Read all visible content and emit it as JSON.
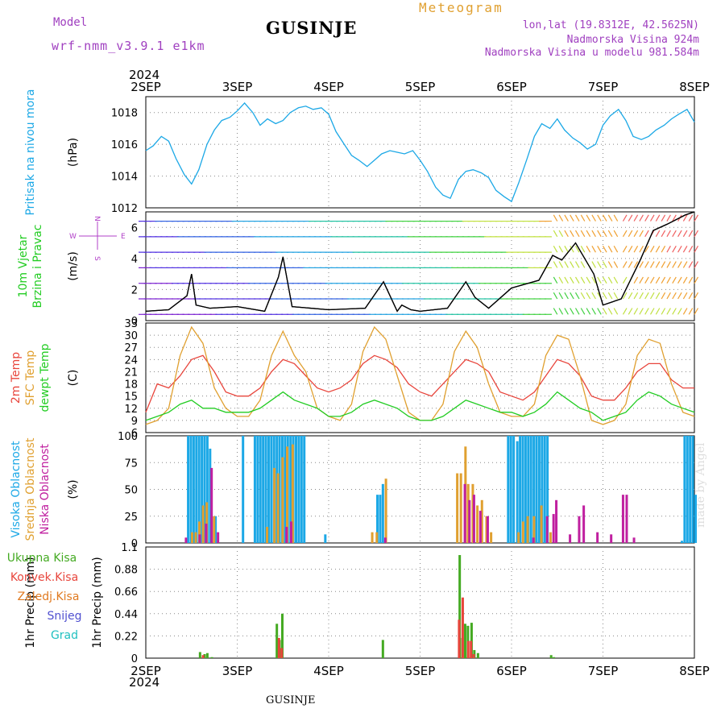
{
  "header": {
    "model_label": "Model",
    "model_value": "wrf-nmm_v3.9.1 e1km",
    "station_title": "GUSINJE",
    "meteogram_label": "Meteogram",
    "lonlat": "lon,lat (19.8312E, 42.5625N)",
    "altitude": "Nadmorska Visina 924m",
    "model_altitude": "Nadmorska Visina u modelu 981.584m",
    "year_top": "2024",
    "year_bottom": "2024",
    "footer_station": "GUSINJE",
    "credit": "made by Angel"
  },
  "colors": {
    "pressure": "#1ca8e6",
    "wind_label": "#22cc22",
    "wind_dir_label": "#b140c8",
    "temp2m": "#e8453c",
    "sfc_temp": "#e0a030",
    "dewpt": "#22cc22",
    "high_cloud": "#1ca8e6",
    "mid_cloud": "#e0a030",
    "low_cloud": "#c020a0",
    "precip_total": "#44aa22",
    "precip_conv": "#e8453c",
    "precip_frozen": "#e07a20",
    "snow": "#5050d0",
    "hail": "#20c0c0",
    "header_purple": "#a040c0",
    "header_orange": "#e0a030"
  },
  "x_axis": {
    "days": [
      "2SEP",
      "3SEP",
      "4SEP",
      "5SEP",
      "6SEP",
      "7SEP",
      "8SEP"
    ]
  },
  "chart_data": [
    {
      "type": "line",
      "ylabel_lines": [
        "Pritisak na nivou mora"
      ],
      "yunit": "(hPa)",
      "ylim": [
        1012,
        1019
      ],
      "yticks": [
        "1012",
        "1014",
        "1016",
        "1018"
      ],
      "x_unit": "days since 2SEP 2024",
      "series": [
        {
          "name": "Pritisak na nivou mora",
          "x": [
            0,
            0.08,
            0.17,
            0.25,
            0.33,
            0.42,
            0.5,
            0.58,
            0.67,
            0.75,
            0.83,
            0.92,
            1.0,
            1.08,
            1.17,
            1.25,
            1.33,
            1.42,
            1.5,
            1.58,
            1.67,
            1.75,
            1.83,
            1.92,
            2.0,
            2.08,
            2.17,
            2.25,
            2.33,
            2.42,
            2.5,
            2.58,
            2.67,
            2.75,
            2.83,
            2.92,
            3.0,
            3.08,
            3.17,
            3.25,
            3.33,
            3.42,
            3.5,
            3.58,
            3.67,
            3.75,
            3.83,
            3.92,
            4.0,
            4.08,
            4.17,
            4.25,
            4.33,
            4.42,
            4.5,
            4.58,
            4.67,
            4.75,
            4.83,
            4.92,
            5.0,
            5.08,
            5.17,
            5.25,
            5.33,
            5.42,
            5.5,
            5.58,
            5.67,
            5.75,
            5.83,
            5.92,
            6.0
          ],
          "values": [
            1015.6,
            1015.9,
            1016.5,
            1016.2,
            1015.1,
            1014.1,
            1013.5,
            1014.4,
            1016.0,
            1016.9,
            1017.5,
            1017.7,
            1018.1,
            1018.6,
            1018.0,
            1017.2,
            1017.6,
            1017.3,
            1017.5,
            1018.0,
            1018.3,
            1018.4,
            1018.2,
            1018.3,
            1017.9,
            1016.8,
            1016.0,
            1015.3,
            1015.0,
            1014.6,
            1015.0,
            1015.4,
            1015.6,
            1015.5,
            1015.4,
            1015.6,
            1015.0,
            1014.3,
            1013.3,
            1012.8,
            1012.6,
            1013.8,
            1014.3,
            1014.4,
            1014.2,
            1013.9,
            1013.1,
            1012.7,
            1012.4,
            1013.6,
            1015.1,
            1016.5,
            1017.3,
            1017.0,
            1017.6,
            1016.9,
            1016.4,
            1016.1,
            1015.7,
            1016.0,
            1017.2,
            1017.8,
            1018.2,
            1017.5,
            1016.5,
            1016.3,
            1016.5,
            1016.9,
            1017.2,
            1017.6,
            1017.9,
            1018.2,
            1017.4
          ]
        }
      ]
    },
    {
      "type": "line",
      "ylabel_lines": [
        "10m Vjetar",
        "Brzina i Pravac"
      ],
      "yunit": "(m/s)",
      "ylim": [
        0,
        7
      ],
      "yticks": [
        "0",
        "2",
        "4",
        "6"
      ],
      "compass": {
        "north": "N",
        "south": "S",
        "west": "W",
        "east": "E"
      },
      "series": [
        {
          "name": "Brzina",
          "x": [
            0,
            0.25,
            0.45,
            0.5,
            0.55,
            0.7,
            1.0,
            1.3,
            1.45,
            1.5,
            1.6,
            2.0,
            2.4,
            2.6,
            2.75,
            2.8,
            2.9,
            3.0,
            3.3,
            3.5,
            3.6,
            3.75,
            4.0,
            4.3,
            4.45,
            4.55,
            4.7,
            4.9,
            5.0,
            5.2,
            5.4,
            5.55,
            5.7,
            5.9,
            6.0
          ],
          "values": [
            0.6,
            0.7,
            1.6,
            3.0,
            1.0,
            0.8,
            0.9,
            0.6,
            2.8,
            4.1,
            0.9,
            0.7,
            0.8,
            2.5,
            0.6,
            1.0,
            0.7,
            0.6,
            0.8,
            2.5,
            1.5,
            0.8,
            2.1,
            2.6,
            4.2,
            3.9,
            5.0,
            3.0,
            1.0,
            1.4,
            3.8,
            5.8,
            6.2,
            6.8,
            7.0
          ]
        }
      ]
    },
    {
      "type": "line",
      "ylabel_lines": [
        "2m Temp",
        "SFC Temp",
        "dewpt Temp"
      ],
      "yunit": "(C)",
      "ylim": [
        6,
        33
      ],
      "yticks": [
        "6",
        "9",
        "12",
        "15",
        "18",
        "21",
        "24",
        "27",
        "30",
        "33"
      ],
      "series": [
        {
          "name": "2m Temp",
          "x": [
            0,
            0.125,
            0.25,
            0.375,
            0.5,
            0.625,
            0.75,
            0.875,
            1.0,
            1.125,
            1.25,
            1.375,
            1.5,
            1.625,
            1.75,
            1.875,
            2.0,
            2.125,
            2.25,
            2.375,
            2.5,
            2.625,
            2.75,
            2.875,
            3.0,
            3.125,
            3.25,
            3.375,
            3.5,
            3.625,
            3.75,
            3.875,
            4.0,
            4.125,
            4.25,
            4.375,
            4.5,
            4.625,
            4.75,
            4.875,
            5.0,
            5.125,
            5.25,
            5.375,
            5.5,
            5.625,
            5.75,
            5.875,
            6.0
          ],
          "values": [
            11,
            18,
            17,
            20,
            24,
            25,
            21,
            16,
            15,
            15,
            17,
            21,
            24,
            23,
            20,
            17,
            16,
            17,
            19,
            23,
            25,
            24,
            22,
            18,
            16,
            15,
            18,
            21,
            24,
            23,
            21,
            16,
            15,
            14,
            16,
            20,
            24,
            23,
            20,
            15,
            14,
            14,
            17,
            21,
            23,
            23,
            19,
            17,
            17
          ]
        },
        {
          "name": "SFC Temp",
          "x": [
            0,
            0.125,
            0.25,
            0.375,
            0.5,
            0.625,
            0.75,
            0.875,
            1.0,
            1.125,
            1.25,
            1.375,
            1.5,
            1.625,
            1.75,
            1.875,
            2.0,
            2.125,
            2.25,
            2.375,
            2.5,
            2.625,
            2.75,
            2.875,
            3.0,
            3.125,
            3.25,
            3.375,
            3.5,
            3.625,
            3.75,
            3.875,
            4.0,
            4.125,
            4.25,
            4.375,
            4.5,
            4.625,
            4.75,
            4.875,
            5.0,
            5.125,
            5.25,
            5.375,
            5.5,
            5.625,
            5.75,
            5.875,
            6.0
          ],
          "values": [
            8,
            9,
            12,
            25,
            32,
            28,
            17,
            12,
            10,
            10,
            14,
            25,
            31,
            25,
            21,
            12,
            10,
            9,
            13,
            26,
            32,
            29,
            20,
            11,
            9,
            9,
            13,
            26,
            31,
            27,
            18,
            11,
            10,
            10,
            13,
            25,
            30,
            29,
            20,
            9,
            8,
            9,
            13,
            25,
            29,
            28,
            18,
            11,
            10
          ]
        },
        {
          "name": "dewpt Temp",
          "x": [
            0,
            0.125,
            0.25,
            0.375,
            0.5,
            0.625,
            0.75,
            0.875,
            1.0,
            1.125,
            1.25,
            1.375,
            1.5,
            1.625,
            1.75,
            1.875,
            2.0,
            2.125,
            2.25,
            2.375,
            2.5,
            2.625,
            2.75,
            2.875,
            3.0,
            3.125,
            3.25,
            3.375,
            3.5,
            3.625,
            3.75,
            3.875,
            4.0,
            4.125,
            4.25,
            4.375,
            4.5,
            4.625,
            4.75,
            4.875,
            5.0,
            5.125,
            5.25,
            5.375,
            5.5,
            5.625,
            5.75,
            5.875,
            6.0
          ],
          "values": [
            9,
            10,
            11,
            13,
            14,
            12,
            12,
            11,
            11,
            11,
            12,
            14,
            16,
            14,
            13,
            12,
            10,
            10,
            11,
            13,
            14,
            13,
            12,
            10,
            9,
            9,
            10,
            12,
            14,
            13,
            12,
            11,
            11,
            10,
            11,
            13,
            16,
            14,
            12,
            11,
            9,
            10,
            11,
            14,
            16,
            15,
            13,
            12,
            11
          ]
        }
      ]
    },
    {
      "type": "bar",
      "ylabel_lines": [
        "Visoka Oblacnost",
        "Srednja Oblacnost",
        "Niska Oblacnost"
      ],
      "yunit": "(%)",
      "ylim": [
        0,
        100
      ],
      "yticks": [
        "0",
        "25",
        "50",
        "75",
        "100"
      ],
      "series": [
        {
          "name": "Visoka Oblacnost",
          "x": [
            0.45,
            0.48,
            0.51,
            0.54,
            0.57,
            0.6,
            0.63,
            0.66,
            0.69,
            0.75,
            1.05,
            1.18,
            1.21,
            1.24,
            1.27,
            1.3,
            1.33,
            1.36,
            1.39,
            1.42,
            1.45,
            1.48,
            1.51,
            1.54,
            1.57,
            1.6,
            1.63,
            1.66,
            1.69,
            1.72,
            1.95,
            2.52,
            2.55,
            2.58,
            3.95,
            3.98,
            4.01,
            4.05,
            4.08,
            4.11,
            4.14,
            4.17,
            4.2,
            4.23,
            4.26,
            4.29,
            4.32,
            4.35,
            4.38,
            5.85,
            5.88,
            5.91,
            5.94,
            5.97,
            6.0
          ],
          "values": [
            100,
            100,
            100,
            100,
            100,
            100,
            100,
            100,
            88,
            25,
            100,
            100,
            100,
            100,
            100,
            100,
            100,
            100,
            100,
            100,
            100,
            100,
            100,
            100,
            100,
            100,
            100,
            100,
            100,
            100,
            8,
            45,
            45,
            55,
            100,
            100,
            100,
            95,
            100,
            100,
            100,
            100,
            100,
            100,
            100,
            100,
            100,
            100,
            100,
            2,
            100,
            100,
            100,
            100,
            45
          ]
        },
        {
          "name": "Srednja Oblacnost",
          "x": [
            0.48,
            0.52,
            0.56,
            0.6,
            0.64,
            0.72,
            1.3,
            1.38,
            1.42,
            1.47,
            1.52,
            1.58,
            2.45,
            2.5,
            2.6,
            3.38,
            3.42,
            3.47,
            3.5,
            3.55,
            3.6,
            3.65,
            3.7,
            3.75,
            4.05,
            4.1,
            4.15,
            4.22,
            4.3,
            4.4
          ],
          "values": [
            10,
            10,
            20,
            35,
            38,
            25,
            15,
            70,
            65,
            80,
            90,
            92,
            10,
            10,
            60,
            65,
            65,
            90,
            55,
            55,
            35,
            40,
            25,
            10,
            10,
            20,
            25,
            25,
            35,
            10
          ]
        },
        {
          "name": "Niska Oblacnost",
          "x": [
            0.4,
            0.55,
            0.62,
            0.68,
            0.75,
            1.5,
            1.55,
            2.58,
            3.45,
            3.5,
            3.55,
            3.62,
            3.7,
            4.2,
            4.35,
            4.42,
            4.45,
            4.6,
            4.7,
            4.75,
            4.9,
            5.05,
            5.18,
            5.22,
            5.3
          ],
          "values": [
            5,
            8,
            18,
            70,
            10,
            15,
            20,
            5,
            55,
            40,
            45,
            30,
            25,
            5,
            25,
            27,
            40,
            8,
            25,
            35,
            10,
            8,
            45,
            45,
            5
          ]
        }
      ]
    },
    {
      "type": "bar",
      "ylabel_lines": [
        "1hr Precip (mm)"
      ],
      "legend_left": [
        "Ukupna Kisa",
        "Konvek.Kisa",
        "Zaledj.Kisa",
        "Snijeg",
        "Grad"
      ],
      "ylim": [
        0,
        1.1
      ],
      "yticks": [
        "0",
        "0.22",
        "0.44",
        "0.66",
        "0.88",
        "1.1"
      ],
      "series": [
        {
          "name": "Ukupna Kisa",
          "x": [
            0.58,
            0.63,
            0.66,
            0.71,
            1.42,
            1.45,
            1.48,
            2.58,
            3.42,
            3.45,
            3.48,
            3.51,
            3.55,
            3.58,
            3.62,
            4.42,
            4.45
          ],
          "values": [
            0.06,
            0.04,
            0.05,
            0.01,
            0.34,
            0.18,
            0.44,
            0.18,
            1.02,
            0.2,
            0.34,
            0.32,
            0.35,
            0.08,
            0.05,
            0.03,
            0.01
          ]
        },
        {
          "name": "Konvek.Kisa",
          "x": [
            0.6,
            1.43,
            1.46,
            3.4,
            3.44,
            3.5,
            3.53,
            3.56
          ],
          "values": [
            0.03,
            0.2,
            0.1,
            0.38,
            0.6,
            0.17,
            0.17,
            0.04
          ]
        }
      ]
    }
  ]
}
